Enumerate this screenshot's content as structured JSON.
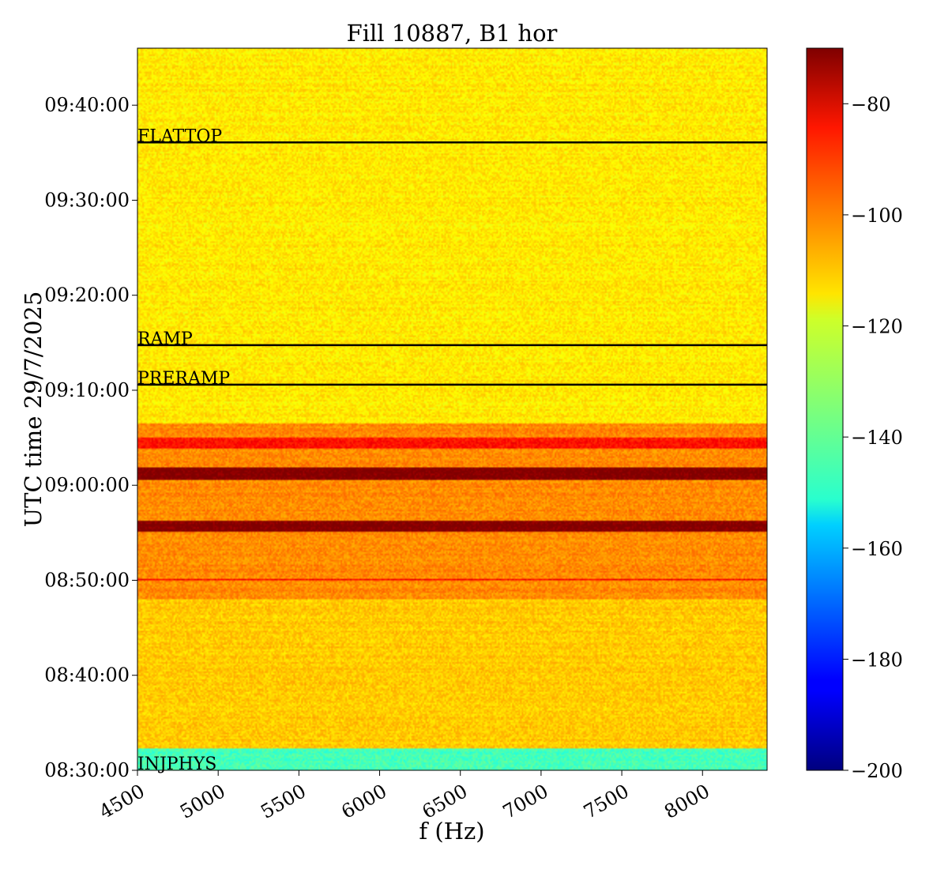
{
  "chart_data": {
    "type": "heatmap",
    "title": "Fill 10887, B1 hor",
    "xlabel": "f (Hz)",
    "ylabel": "UTC time 29/7/2025",
    "xlim": [
      4500,
      8400
    ],
    "ylim": [
      "08:30:00",
      "09:46:00"
    ],
    "x_ticks": [
      "4500",
      "5000",
      "5500",
      "6000",
      "6500",
      "7000",
      "7500",
      "8000"
    ],
    "y_ticks": [
      "08:30:00",
      "08:40:00",
      "08:50:00",
      "09:00:00",
      "09:10:00",
      "09:20:00",
      "09:30:00",
      "09:40:00"
    ],
    "colorbar": {
      "colormap": "jet",
      "range": [
        -200,
        -70
      ],
      "ticks": [
        "−80",
        "−100",
        "−120",
        "−140",
        "−160",
        "−180",
        "−200"
      ]
    },
    "phase_markers": [
      {
        "label": "INJPHYS",
        "time": "08:30:00"
      },
      {
        "label": "PRERAMP",
        "time": "09:10:35"
      },
      {
        "label": "RAMP",
        "time": "09:14:45"
      },
      {
        "label": "FLATTOP",
        "time": "09:36:05"
      }
    ],
    "intensity_regions_db": [
      {
        "from": "08:30:00",
        "to": "08:32:15",
        "level": -142
      },
      {
        "from": "08:32:15",
        "to": "08:48:00",
        "level": -112
      },
      {
        "from": "08:48:00",
        "to": "09:06:30",
        "level": -104
      },
      {
        "from": "09:06:30",
        "to": "09:46:00",
        "level": -116
      }
    ],
    "strong_bands_db": [
      {
        "from": "09:00:30",
        "to": "09:01:50",
        "level": -70
      },
      {
        "from": "08:55:10",
        "to": "08:56:20",
        "level": -70
      },
      {
        "from": "09:03:50",
        "to": "09:05:00",
        "level": -88
      },
      {
        "from": "08:50:00",
        "to": "08:50:10",
        "level": -86
      }
    ]
  }
}
